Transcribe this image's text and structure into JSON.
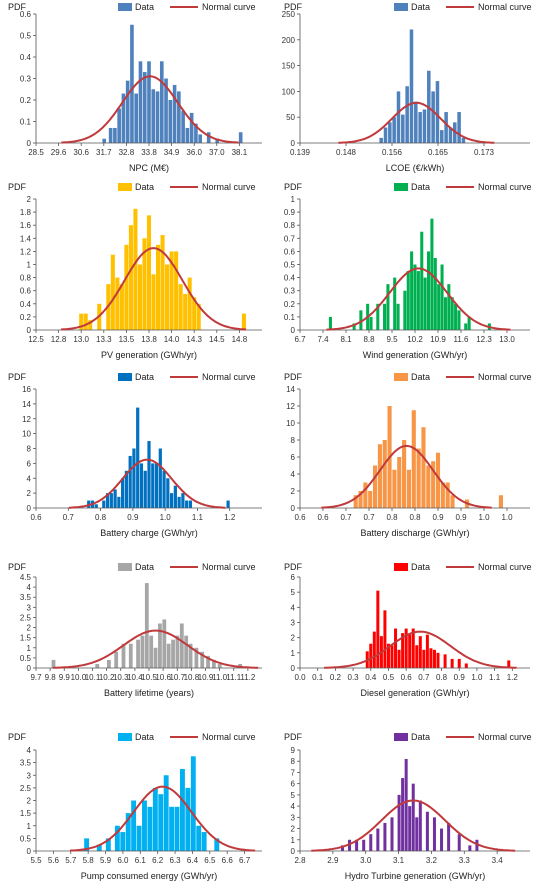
{
  "legend": {
    "data_label": "Data",
    "curve_label": "Normal curve"
  },
  "colors": {
    "curve": "#c0393b",
    "axis": "#555555"
  },
  "chart_data": [
    {
      "type": "bar",
      "title": "",
      "ylabel": "PDF",
      "xlabel": "NPC (M€)",
      "color": "#4f81bd",
      "xticks": [
        "28.5",
        "29.6",
        "30.6",
        "31.7",
        "32.8",
        "33.8",
        "34.9",
        "36.0",
        "37.0",
        "38.1"
      ],
      "xlim": [
        28.5,
        39.1
      ],
      "yticks": [
        "0",
        "0.1",
        "0.2",
        "0.3",
        "0.4",
        "0.5",
        "0.6"
      ],
      "ylim": [
        0,
        0.6
      ],
      "bins": [
        [
          31.7,
          0.02
        ],
        [
          32.0,
          0.07
        ],
        [
          32.2,
          0.07
        ],
        [
          32.4,
          0.16
        ],
        [
          32.6,
          0.23
        ],
        [
          32.8,
          0.29
        ],
        [
          33.0,
          0.55
        ],
        [
          33.2,
          0.23
        ],
        [
          33.4,
          0.38
        ],
        [
          33.6,
          0.33
        ],
        [
          33.8,
          0.38
        ],
        [
          34.0,
          0.25
        ],
        [
          34.2,
          0.24
        ],
        [
          34.4,
          0.38
        ],
        [
          34.6,
          0.3
        ],
        [
          34.8,
          0.2
        ],
        [
          35.0,
          0.27
        ],
        [
          35.2,
          0.24
        ],
        [
          35.4,
          0.15
        ],
        [
          35.6,
          0.07
        ],
        [
          35.8,
          0.14
        ],
        [
          36.0,
          0.09
        ],
        [
          36.2,
          0.04
        ],
        [
          36.6,
          0.05
        ],
        [
          37.0,
          0.02
        ],
        [
          38.1,
          0.05
        ]
      ],
      "bin_width": 0.17,
      "normal": {
        "mean": 33.85,
        "sd": 1.3,
        "peak": 0.31
      }
    },
    {
      "type": "bar",
      "title": "",
      "ylabel": "PDF",
      "xlabel": "LCOE (€/kWh)",
      "color": "#4f81bd",
      "xticks": [
        "0.139",
        "0.148",
        "0.156",
        "0.165",
        "0.173"
      ],
      "xlim": [
        0.139,
        0.1815
      ],
      "yticks": [
        "0",
        "50",
        "100",
        "150",
        "200",
        "250"
      ],
      "ylim": [
        0,
        250
      ],
      "bins": [
        [
          0.154,
          10
        ],
        [
          0.1548,
          30
        ],
        [
          0.1556,
          40
        ],
        [
          0.1564,
          50
        ],
        [
          0.1572,
          100
        ],
        [
          0.158,
          55
        ],
        [
          0.1588,
          110
        ],
        [
          0.1596,
          220
        ],
        [
          0.1604,
          80
        ],
        [
          0.1612,
          60
        ],
        [
          0.162,
          65
        ],
        [
          0.1628,
          140
        ],
        [
          0.1636,
          100
        ],
        [
          0.1644,
          120
        ],
        [
          0.1652,
          25
        ],
        [
          0.166,
          60
        ],
        [
          0.1668,
          30
        ],
        [
          0.1676,
          40
        ],
        [
          0.1684,
          60
        ],
        [
          0.1692,
          10
        ]
      ],
      "bin_width": 0.00065,
      "normal": {
        "mean": 0.1605,
        "sd": 0.0045,
        "peak": 78
      }
    },
    {
      "type": "bar",
      "title": "",
      "ylabel": "PDF",
      "xlabel": "PV generation (GWh/yr)",
      "color": "#ffc000",
      "xticks": [
        "12.5",
        "12.8",
        "13.0",
        "13.3",
        "13.5",
        "13.8",
        "14.0",
        "14.3",
        "14.5",
        "14.8"
      ],
      "xlim": [
        12.5,
        15.0
      ],
      "yticks": [
        "0",
        "0.2",
        "0.4",
        "0.6",
        "0.8",
        "1",
        "1.2",
        "1.4",
        "1.6",
        "1.8",
        "2"
      ],
      "ylim": [
        0,
        2
      ],
      "bins": [
        [
          13.0,
          0.25
        ],
        [
          13.05,
          0.25
        ],
        [
          13.1,
          0.15
        ],
        [
          13.2,
          0.4
        ],
        [
          13.3,
          0.7
        ],
        [
          13.35,
          1.15
        ],
        [
          13.4,
          0.8
        ],
        [
          13.45,
          0.7
        ],
        [
          13.5,
          1.3
        ],
        [
          13.55,
          1.6
        ],
        [
          13.6,
          1.85
        ],
        [
          13.65,
          1.0
        ],
        [
          13.7,
          1.4
        ],
        [
          13.75,
          1.75
        ],
        [
          13.8,
          0.85
        ],
        [
          13.85,
          1.3
        ],
        [
          13.9,
          1.45
        ],
        [
          13.95,
          1.0
        ],
        [
          14.0,
          1.2
        ],
        [
          14.05,
          1.2
        ],
        [
          14.1,
          0.7
        ],
        [
          14.15,
          0.55
        ],
        [
          14.2,
          0.8
        ],
        [
          14.25,
          0.5
        ],
        [
          14.3,
          0.4
        ],
        [
          14.8,
          0.25
        ]
      ],
      "bin_width": 0.045,
      "normal": {
        "mean": 13.8,
        "sd": 0.32,
        "peak": 1.25
      }
    },
    {
      "type": "bar",
      "title": "",
      "ylabel": "PDF",
      "xlabel": "Wind generation (GWh/yr)",
      "color": "#00b050",
      "xticks": [
        "6.7",
        "7.4",
        "8.1",
        "8.8",
        "9.5",
        "10.2",
        "10.9",
        "11.6",
        "12.3",
        "13.0"
      ],
      "xlim": [
        6.7,
        13.5
      ],
      "yticks": [
        "0",
        "0.1",
        "0.2",
        "0.3",
        "0.4",
        "0.5",
        "0.6",
        "0.7",
        "0.8",
        "0.9",
        "1"
      ],
      "ylim": [
        0,
        1
      ],
      "bins": [
        [
          7.6,
          0.1
        ],
        [
          8.3,
          0.05
        ],
        [
          8.5,
          0.15
        ],
        [
          8.7,
          0.2
        ],
        [
          8.8,
          0.1
        ],
        [
          9.0,
          0.2
        ],
        [
          9.2,
          0.2
        ],
        [
          9.3,
          0.35
        ],
        [
          9.5,
          0.4
        ],
        [
          9.6,
          0.2
        ],
        [
          9.8,
          0.3
        ],
        [
          9.9,
          0.45
        ],
        [
          10.0,
          0.6
        ],
        [
          10.1,
          0.5
        ],
        [
          10.2,
          0.45
        ],
        [
          10.3,
          0.75
        ],
        [
          10.4,
          0.4
        ],
        [
          10.5,
          0.6
        ],
        [
          10.6,
          0.85
        ],
        [
          10.7,
          0.55
        ],
        [
          10.8,
          0.35
        ],
        [
          10.9,
          0.5
        ],
        [
          11.0,
          0.25
        ],
        [
          11.1,
          0.35
        ],
        [
          11.2,
          0.25
        ],
        [
          11.3,
          0.2
        ],
        [
          11.4,
          0.15
        ],
        [
          11.6,
          0.05
        ],
        [
          11.7,
          0.1
        ],
        [
          12.3,
          0.05
        ]
      ],
      "bin_width": 0.09,
      "normal": {
        "mean": 10.2,
        "sd": 0.85,
        "peak": 0.47
      }
    },
    {
      "type": "bar",
      "title": "",
      "ylabel": "PDF",
      "xlabel": "Battery charge (GWh/yr)",
      "color": "#0070c0",
      "xticks": [
        "0.6",
        "0.7",
        "0.8",
        "0.9",
        "1.0",
        "1.1",
        "1.2"
      ],
      "xlim": [
        0.6,
        1.2
      ],
      "yticks": [
        "0",
        "2",
        "4",
        "6",
        "8",
        "10",
        "12",
        "14",
        "16"
      ],
      "ylim": [
        0,
        16
      ],
      "bins": [
        [
          0.74,
          1
        ],
        [
          0.75,
          1
        ],
        [
          0.76,
          0.5
        ],
        [
          0.78,
          1
        ],
        [
          0.79,
          2
        ],
        [
          0.8,
          2
        ],
        [
          0.81,
          2.5
        ],
        [
          0.82,
          1.5
        ],
        [
          0.83,
          4
        ],
        [
          0.84,
          5
        ],
        [
          0.85,
          7
        ],
        [
          0.86,
          8
        ],
        [
          0.87,
          13.5
        ],
        [
          0.88,
          6
        ],
        [
          0.89,
          5
        ],
        [
          0.9,
          9
        ],
        [
          0.91,
          6
        ],
        [
          0.92,
          6
        ],
        [
          0.93,
          8
        ],
        [
          0.94,
          5
        ],
        [
          0.95,
          4
        ],
        [
          0.96,
          2
        ],
        [
          0.97,
          3
        ],
        [
          0.98,
          1.5
        ],
        [
          0.99,
          2
        ],
        [
          1.0,
          1
        ],
        [
          1.01,
          1
        ],
        [
          1.11,
          1
        ]
      ],
      "bin_width": 0.0085,
      "normal": {
        "mean": 0.895,
        "sd": 0.065,
        "peak": 6.5
      }
    },
    {
      "type": "bar",
      "title": "",
      "ylabel": "PDF",
      "xlabel": "Battery discharge (GWh/yr)",
      "color": "#f79646",
      "xticks": [
        "0.6",
        "0.6",
        "0.7",
        "0.7",
        "0.8",
        "0.8",
        "0.9",
        "0.9",
        "1.0",
        "1.0"
      ],
      "xlim": [
        0.575,
        1.05
      ],
      "yticks": [
        "0",
        "2",
        "4",
        "6",
        "8",
        "10",
        "12",
        "14"
      ],
      "ylim": [
        0,
        14
      ],
      "bins": [
        [
          0.69,
          1.5
        ],
        [
          0.7,
          2
        ],
        [
          0.71,
          3
        ],
        [
          0.72,
          2
        ],
        [
          0.73,
          5
        ],
        [
          0.74,
          7.5
        ],
        [
          0.75,
          8
        ],
        [
          0.76,
          12
        ],
        [
          0.77,
          4.5
        ],
        [
          0.78,
          6
        ],
        [
          0.79,
          8
        ],
        [
          0.8,
          4.5
        ],
        [
          0.81,
          11.5
        ],
        [
          0.82,
          7
        ],
        [
          0.83,
          9.5
        ],
        [
          0.84,
          5
        ],
        [
          0.85,
          5.5
        ],
        [
          0.86,
          6.5
        ],
        [
          0.87,
          3
        ],
        [
          0.88,
          3
        ],
        [
          0.89,
          1.5
        ],
        [
          0.92,
          1
        ],
        [
          0.99,
          1.5
        ]
      ],
      "bin_width": 0.0085,
      "normal": {
        "mean": 0.795,
        "sd": 0.055,
        "peak": 7.3
      }
    },
    {
      "type": "bar",
      "title": "",
      "ylabel": "PDF",
      "xlabel": "Battery lifetime (years)",
      "color": "#a6a6a6",
      "xticks": [
        "9.7",
        "9.8",
        "9.9",
        "10.0",
        "10.1",
        "10.2",
        "10.3",
        "10.4",
        "10.5",
        "10.6",
        "10.7",
        "10.8",
        "10.9",
        "11.0",
        "11.1",
        "11.2"
      ],
      "xlim": [
        9.7,
        11.25
      ],
      "yticks": [
        "0",
        "0.5",
        "1",
        "1.5",
        "2",
        "2.5",
        "3",
        "3.5",
        "4",
        "4.5"
      ],
      "ylim": [
        0,
        4.5
      ],
      "bins": [
        [
          9.82,
          0.4
        ],
        [
          10.12,
          0.2
        ],
        [
          10.2,
          0.4
        ],
        [
          10.25,
          0.8
        ],
        [
          10.3,
          1.2
        ],
        [
          10.35,
          1.2
        ],
        [
          10.4,
          1.4
        ],
        [
          10.43,
          1.6
        ],
        [
          10.46,
          4.2
        ],
        [
          10.49,
          1.6
        ],
        [
          10.52,
          1.0
        ],
        [
          10.55,
          2.2
        ],
        [
          10.58,
          2.4
        ],
        [
          10.61,
          1.2
        ],
        [
          10.64,
          1.4
        ],
        [
          10.67,
          1.6
        ],
        [
          10.7,
          2.2
        ],
        [
          10.73,
          1.6
        ],
        [
          10.76,
          1.2
        ],
        [
          10.8,
          1.0
        ],
        [
          10.84,
          0.8
        ],
        [
          10.88,
          0.6
        ],
        [
          10.92,
          0.4
        ],
        [
          10.96,
          0.2
        ],
        [
          11.1,
          0.2
        ]
      ],
      "bin_width": 0.026,
      "normal": {
        "mean": 10.52,
        "sd": 0.22,
        "peak": 1.85
      }
    },
    {
      "type": "bar",
      "title": "",
      "ylabel": "PDF",
      "xlabel": "Diesel generation (GWh/yr)",
      "color": "#ff0000",
      "xticks": [
        "0.0",
        "0.1",
        "0.2",
        "0.3",
        "0.4",
        "0.5",
        "0.6",
        "0.7",
        "0.8",
        "0.9",
        "1.0",
        "1.1",
        "1.2"
      ],
      "xlim": [
        0,
        1.3
      ],
      "yticks": [
        "0",
        "1",
        "2",
        "3",
        "4",
        "5",
        "6"
      ],
      "ylim": [
        0,
        6
      ],
      "bins": [
        [
          0.38,
          1.1
        ],
        [
          0.4,
          1.6
        ],
        [
          0.42,
          2.4
        ],
        [
          0.44,
          5.1
        ],
        [
          0.46,
          2.1
        ],
        [
          0.48,
          3.8
        ],
        [
          0.5,
          1.6
        ],
        [
          0.52,
          1.5
        ],
        [
          0.54,
          2.6
        ],
        [
          0.56,
          1.2
        ],
        [
          0.58,
          2.3
        ],
        [
          0.6,
          2.6
        ],
        [
          0.62,
          2.2
        ],
        [
          0.64,
          2.6
        ],
        [
          0.66,
          1.5
        ],
        [
          0.68,
          2.1
        ],
        [
          0.7,
          1.2
        ],
        [
          0.72,
          2.2
        ],
        [
          0.74,
          1.3
        ],
        [
          0.76,
          1.2
        ],
        [
          0.78,
          1.0
        ],
        [
          0.82,
          0.9
        ],
        [
          0.86,
          0.6
        ],
        [
          0.9,
          0.6
        ],
        [
          0.94,
          0.3
        ],
        [
          1.18,
          0.5
        ]
      ],
      "bin_width": 0.017,
      "normal": {
        "mean": 0.68,
        "sd": 0.17,
        "peak": 2.4
      }
    },
    {
      "type": "bar",
      "title": "",
      "ylabel": "PDF",
      "xlabel": "Pump consumed energy (GWh/yr)",
      "color": "#00b0f0",
      "xticks": [
        "5.5",
        "5.6",
        "5.7",
        "5.8",
        "5.9",
        "6.0",
        "6.1",
        "6.2",
        "6.3",
        "6.4",
        "6.5",
        "6.6",
        "6.7"
      ],
      "xlim": [
        5.5,
        6.75
      ],
      "yticks": [
        "0",
        "0.5",
        "1",
        "1.5",
        "2",
        "2.5",
        "3",
        "3.5",
        "4"
      ],
      "ylim": [
        0,
        4
      ],
      "bins": [
        [
          5.78,
          0.5
        ],
        [
          5.85,
          0.25
        ],
        [
          5.9,
          0.5
        ],
        [
          5.95,
          1.0
        ],
        [
          5.98,
          0.75
        ],
        [
          6.01,
          1.5
        ],
        [
          6.04,
          2.0
        ],
        [
          6.07,
          1.0
        ],
        [
          6.1,
          2.0
        ],
        [
          6.13,
          1.75
        ],
        [
          6.16,
          2.5
        ],
        [
          6.19,
          2.25
        ],
        [
          6.22,
          3.0
        ],
        [
          6.25,
          1.75
        ],
        [
          6.28,
          1.75
        ],
        [
          6.31,
          3.25
        ],
        [
          6.34,
          2.5
        ],
        [
          6.37,
          3.75
        ],
        [
          6.4,
          1.0
        ],
        [
          6.43,
          0.75
        ],
        [
          6.5,
          0.5
        ]
      ],
      "bin_width": 0.027,
      "normal": {
        "mean": 6.2,
        "sd": 0.16,
        "peak": 2.55
      }
    },
    {
      "type": "bar",
      "title": "",
      "ylabel": "PDF",
      "xlabel": "Hydro Turbine generation (GWh/yr)",
      "color": "#7030a0",
      "xticks": [
        "2.8",
        "2.9",
        "3.0",
        "3.1",
        "3.2",
        "3.3",
        "3.4"
      ],
      "xlim": [
        2.8,
        3.45
      ],
      "yticks": [
        "0",
        "1",
        "2",
        "3",
        "4",
        "5",
        "6",
        "7",
        "8",
        "9"
      ],
      "ylim": [
        0,
        9
      ],
      "bins": [
        [
          2.92,
          0.5
        ],
        [
          2.94,
          1.0
        ],
        [
          2.96,
          1.0
        ],
        [
          2.98,
          1.0
        ],
        [
          3.0,
          1.5
        ],
        [
          3.02,
          2.0
        ],
        [
          3.04,
          2.5
        ],
        [
          3.06,
          3.0
        ],
        [
          3.08,
          5.0
        ],
        [
          3.09,
          6.5
        ],
        [
          3.1,
          8.2
        ],
        [
          3.11,
          4.0
        ],
        [
          3.12,
          6.0
        ],
        [
          3.13,
          3.0
        ],
        [
          3.14,
          4.5
        ],
        [
          3.16,
          3.5
        ],
        [
          3.18,
          3.0
        ],
        [
          3.2,
          2.0
        ],
        [
          3.22,
          2.5
        ],
        [
          3.25,
          1.5
        ],
        [
          3.28,
          0.5
        ],
        [
          3.3,
          1.0
        ]
      ],
      "bin_width": 0.0085,
      "normal": {
        "mean": 3.12,
        "sd": 0.09,
        "peak": 4.5
      }
    }
  ]
}
